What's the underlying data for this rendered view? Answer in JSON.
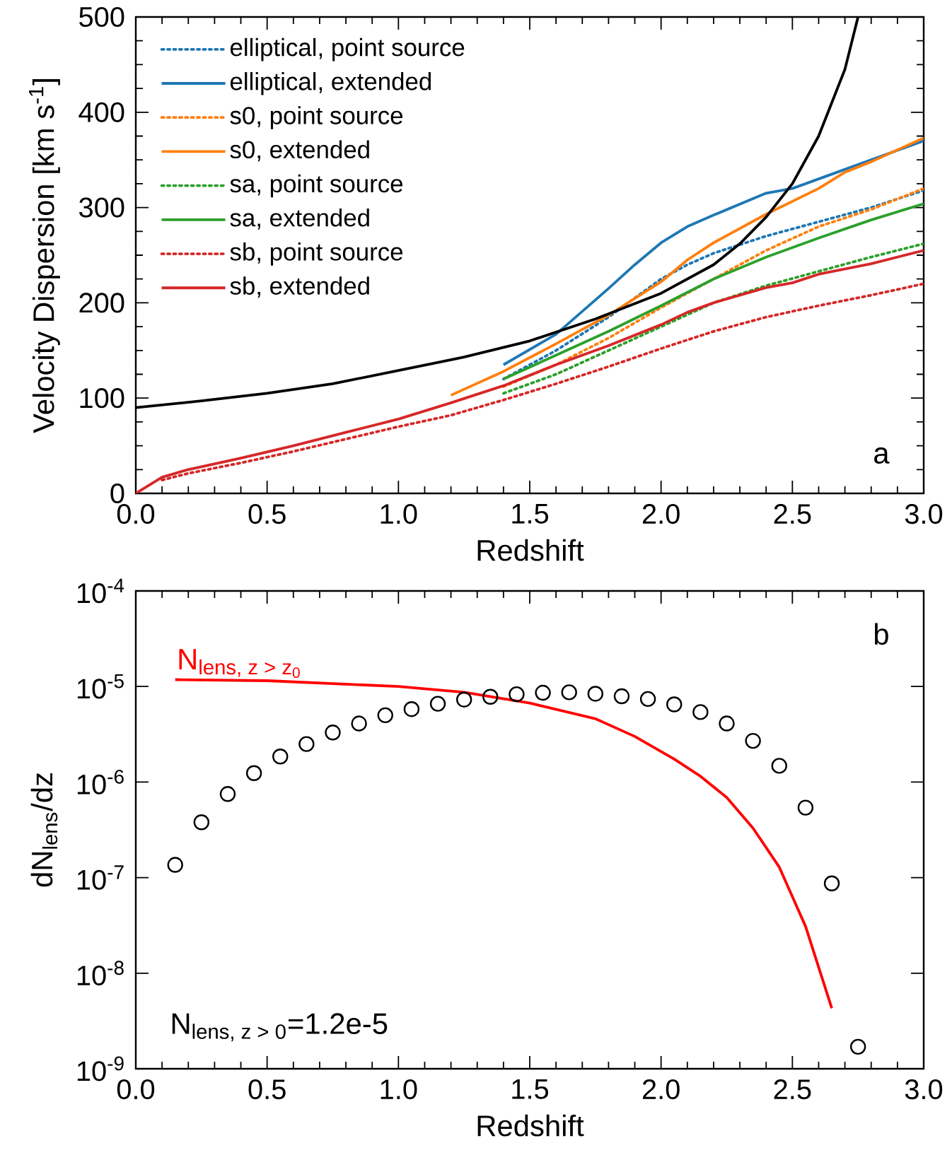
{
  "chart_data": [
    {
      "type": "line",
      "xlabel": "Redshift",
      "ylabel": "Velocity Dispersion [km s$^{-1}$]",
      "xlim": [
        0,
        3
      ],
      "ylim": [
        0,
        500
      ],
      "xticks": [
        {
          "value": 0,
          "label": "0.0"
        },
        0.5,
        {
          "value": 1,
          "label": "1.0"
        },
        1.5,
        {
          "value": 2,
          "label": "2.0"
        },
        2.5,
        {
          "value": 3,
          "label": "3.0"
        }
      ],
      "yticks": [
        0,
        100,
        200,
        300,
        400,
        500
      ],
      "legend": "top left",
      "grid": false,
      "annotations": [
        "\\mathrm{a}"
      ],
      "series": [
        {
          "name": "elliptical, point source",
          "color": "#1f77b4",
          "line_style": "dotted",
          "x": [
            1.4,
            1.6,
            1.8,
            2.0,
            2.1,
            2.2,
            2.4,
            2.6,
            2.8,
            3.0
          ],
          "values": [
            120,
            150,
            185,
            225,
            240,
            252,
            270,
            285,
            300,
            318
          ]
        },
        {
          "name": "elliptical, extended",
          "color": "#1f77b4",
          "line_style": "solid",
          "x": [
            1.4,
            1.6,
            1.8,
            1.9,
            2.0,
            2.1,
            2.2,
            2.4,
            2.5,
            2.6,
            2.8,
            3.0
          ],
          "values": [
            135,
            167,
            215,
            240,
            263,
            280,
            292,
            315,
            320,
            330,
            350,
            370
          ]
        },
        {
          "name": "s0, point source",
          "color": "#ff7f0e",
          "line_style": "dotted",
          "x": [
            1.4,
            1.6,
            1.8,
            2.0,
            2.2,
            2.4,
            2.6,
            2.8,
            3.0
          ],
          "values": [
            112,
            135,
            163,
            195,
            225,
            255,
            280,
            298,
            320
          ]
        },
        {
          "name": "s0, extended",
          "color": "#ff7f0e",
          "line_style": "solid",
          "x": [
            1.2,
            1.4,
            1.6,
            1.8,
            2.0,
            2.1,
            2.2,
            2.4,
            2.6,
            2.7,
            2.8,
            3.0
          ],
          "values": [
            103,
            128,
            157,
            187,
            222,
            245,
            263,
            293,
            320,
            337,
            348,
            373
          ]
        },
        {
          "name": "sa, point source",
          "color": "#2ca02c",
          "line_style": "dotted",
          "x": [
            1.4,
            1.6,
            1.8,
            2.0,
            2.2,
            2.4,
            2.6,
            2.8,
            3.0
          ],
          "values": [
            105,
            125,
            150,
            175,
            200,
            218,
            233,
            248,
            262
          ]
        },
        {
          "name": "sa, extended",
          "color": "#2ca02c",
          "line_style": "solid",
          "x": [
            1.4,
            1.6,
            1.8,
            2.0,
            2.2,
            2.4,
            2.6,
            2.8,
            3.0
          ],
          "values": [
            120,
            145,
            170,
            197,
            225,
            248,
            268,
            287,
            304
          ]
        },
        {
          "name": "sb, point source",
          "color": "#d62728",
          "line_style": "dotted",
          "x": [
            0.1,
            0.2,
            0.4,
            0.6,
            0.8,
            1.0,
            1.2,
            1.4,
            1.6,
            1.8,
            2.0,
            2.2,
            2.4,
            2.6,
            2.8,
            3.0
          ],
          "values": [
            14,
            21,
            32,
            44,
            57,
            70,
            82,
            98,
            115,
            133,
            152,
            170,
            185,
            197,
            208,
            220
          ]
        },
        {
          "name": "sb, extended",
          "color": "#d62728",
          "line_style": "solid",
          "x": [
            0,
            0.1,
            0.2,
            0.4,
            0.6,
            0.8,
            1.0,
            1.2,
            1.4,
            1.6,
            1.8,
            2.0,
            2.1,
            2.2,
            2.4,
            2.5,
            2.6,
            2.8,
            3.0
          ],
          "values": [
            0,
            17,
            25,
            37,
            50,
            64,
            78,
            95,
            113,
            135,
            155,
            177,
            190,
            200,
            216,
            221,
            230,
            241,
            255
          ]
        },
        {
          "color": "#000000",
          "line_style": "solid",
          "x": [
            0,
            0.25,
            0.5,
            0.75,
            1.0,
            1.25,
            1.5,
            1.75,
            2.0,
            2.2,
            2.3,
            2.4,
            2.5,
            2.6,
            2.7,
            2.75
          ],
          "values": [
            90,
            97,
            105,
            115,
            129,
            143,
            160,
            183,
            210,
            240,
            262,
            290,
            325,
            375,
            445,
            500
          ]
        }
      ]
    },
    {
      "type": "line",
      "xlabel": "Redshift",
      "ylabel": "dN$_{lens}$/dz",
      "log": "y",
      "xlim": [
        0,
        3
      ],
      "ylim": [
        1e-09,
        0.0001
      ],
      "xticks": [
        {
          "value": 0,
          "label": "0.0"
        },
        0.5,
        {
          "value": 1,
          "label": "1.0"
        },
        1.5,
        {
          "value": 2,
          "label": "2.0"
        },
        2.5,
        {
          "value": 3,
          "label": "3.0"
        }
      ],
      "yticks": [
        {
          "value": 1e-09,
          "label": "10$^{-9}$"
        },
        {
          "value": 1e-08,
          "label": "10$^{-8}$"
        },
        {
          "value": 1e-07,
          "label": "10$^{-7}$"
        },
        {
          "value": 1e-06,
          "label": "10$^{-6}$"
        },
        {
          "value": 1e-05,
          "label": "10$^{-5}$"
        },
        {
          "value": 0.0001,
          "label": "10$^{-4}$"
        }
      ],
      "legend": false,
      "grid": false,
      "annotations": [
        "\\mathrm{b}",
        "\\mathrm{N}_{\\text{lens, z > 0}}\\text{=1.2e-5}"
      ],
      "series": [
        {
          "type": "scatter",
          "marker": "circle",
          "color": "#000000",
          "x": [
            0.15,
            0.25,
            0.35,
            0.45,
            0.55,
            0.65,
            0.75,
            0.85,
            0.95,
            1.05,
            1.15,
            1.25,
            1.35,
            1.45,
            1.55,
            1.65,
            1.75,
            1.85,
            1.95,
            2.05,
            2.15,
            2.25,
            2.35,
            2.45,
            2.55,
            2.65,
            2.75
          ],
          "values": [
            1.36e-07,
            3.8e-07,
            7.5e-07,
            1.24e-06,
            1.85e-06,
            2.5e-06,
            3.3e-06,
            4.1e-06,
            5e-06,
            5.8e-06,
            6.6e-06,
            7.3e-06,
            7.8e-06,
            8.3e-06,
            8.6e-06,
            8.7e-06,
            8.4e-06,
            7.9e-06,
            7.4e-06,
            6.5e-06,
            5.4e-06,
            4.1e-06,
            2.7e-06,
            1.48e-06,
            5.4e-07,
            8.7e-08,
            1.7e-09
          ]
        },
        {
          "type": "line",
          "name": "\\mathrm{N}_{\\text{lens, z > z}_{\\mathrm{0}}}",
          "color": "#ff0000",
          "line_style": "solid",
          "x": [
            0.15,
            0.5,
            1.0,
            1.25,
            1.5,
            1.75,
            1.9,
            2.05,
            2.15,
            2.25,
            2.35,
            2.45,
            2.55,
            2.65
          ],
          "values": [
            1.18e-05,
            1.15e-05,
            1e-05,
            8.7e-06,
            6.7e-06,
            4.6e-06,
            3e-06,
            1.74e-06,
            1.15e-06,
            6.9e-07,
            3.3e-07,
            1.29e-07,
            3.1e-08,
            4.3e-09
          ]
        }
      ]
    }
  ]
}
